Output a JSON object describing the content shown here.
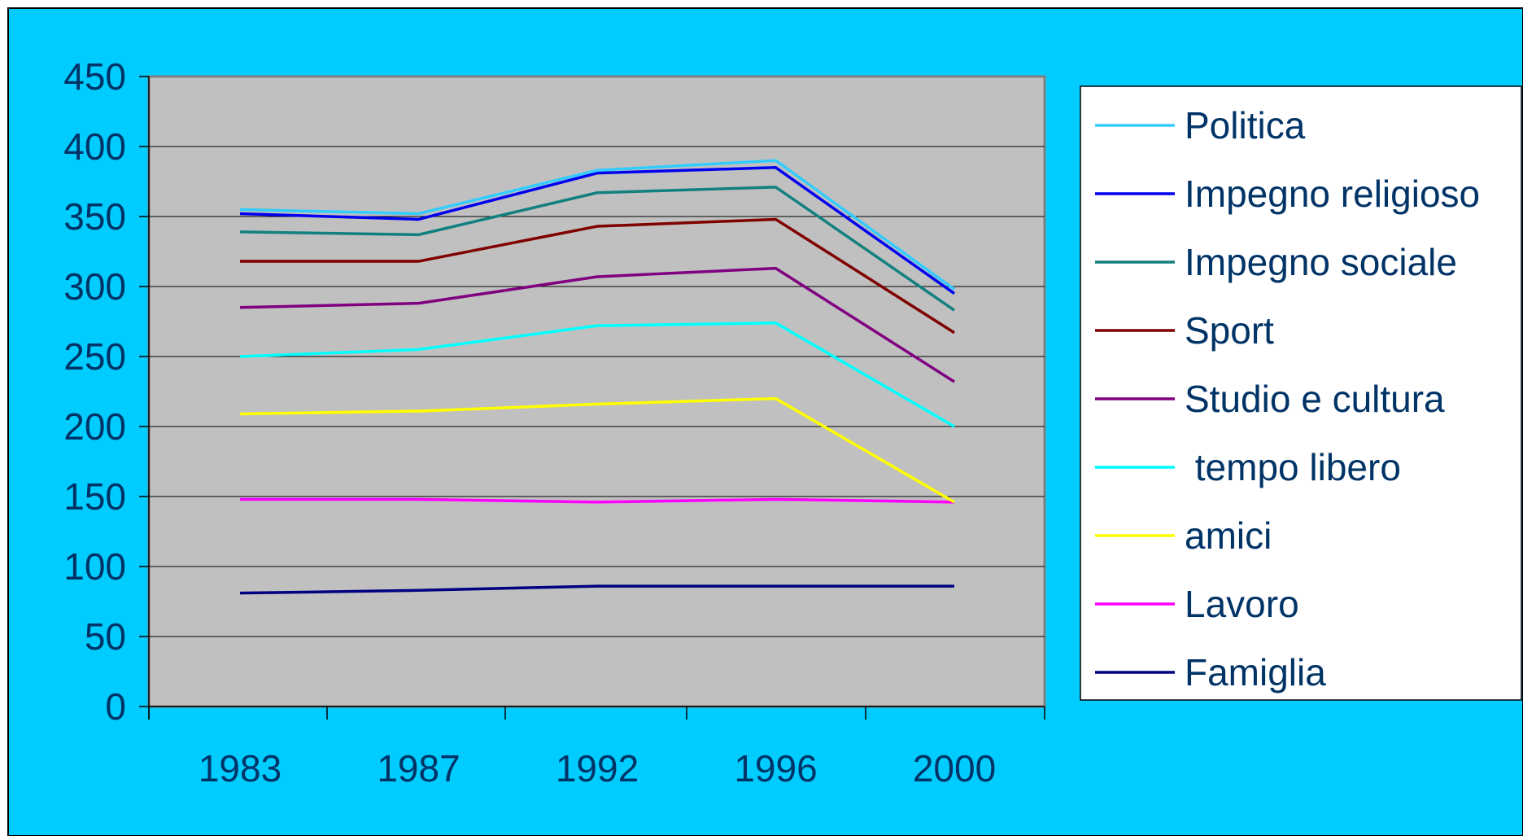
{
  "chart_data": {
    "type": "line",
    "title": "",
    "xlabel": "",
    "ylabel": "",
    "categories": [
      "1983",
      "1987",
      "1992",
      "1996",
      "2000"
    ],
    "ylim": [
      0,
      450
    ],
    "yticks": [
      0,
      50,
      100,
      150,
      200,
      250,
      300,
      350,
      400,
      450
    ],
    "grid": "horizontal",
    "legend_position": "right",
    "series": [
      {
        "name": "Politica",
        "color": "#33CCFF",
        "values": [
          355,
          352,
          383,
          390,
          298
        ]
      },
      {
        "name": "Impegno religioso",
        "color": "#0000EE",
        "values": [
          352,
          348,
          381,
          385,
          295
        ]
      },
      {
        "name": "Impegno sociale",
        "color": "#138080",
        "values": [
          339,
          337,
          367,
          371,
          283
        ]
      },
      {
        "name": "Sport",
        "color": "#800000",
        "values": [
          318,
          318,
          343,
          348,
          267
        ]
      },
      {
        "name": "Studio e cultura",
        "color": "#800080",
        "values": [
          285,
          288,
          307,
          313,
          232
        ]
      },
      {
        "name": " tempo libero",
        "color": "#00FFFF",
        "values": [
          250,
          255,
          272,
          274,
          200
        ]
      },
      {
        "name": "amici",
        "color": "#FFFF00",
        "values": [
          209,
          211,
          216,
          220,
          146
        ]
      },
      {
        "name": "Lavoro",
        "color": "#FF00FF",
        "values": [
          148,
          148,
          146,
          148,
          146
        ]
      },
      {
        "name": "Famiglia",
        "color": "#000080",
        "values": [
          81,
          83,
          86,
          86,
          86
        ]
      }
    ],
    "colors": {
      "background": "#00CCFF",
      "plot_area": "#C0C0C0",
      "gridline": "#000000",
      "axis_text": "#003366",
      "legend_background": "#FFFFFF"
    }
  }
}
